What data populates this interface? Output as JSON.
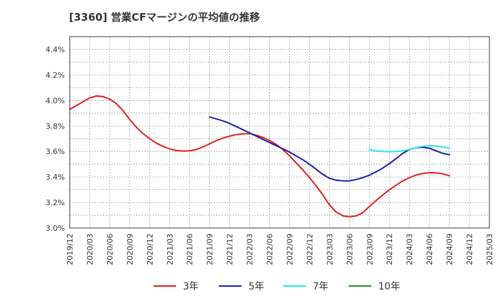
{
  "chart_data": {
    "type": "line",
    "title": "[3360]  営業CFマージンの平均値の推移",
    "xlabel": "",
    "ylabel": "",
    "x_ticks": [
      "2019/12",
      "2020/03",
      "2020/06",
      "2020/09",
      "2020/12",
      "2021/03",
      "2021/06",
      "2021/09",
      "2021/12",
      "2022/03",
      "2022/06",
      "2022/09",
      "2022/12",
      "2023/03",
      "2023/06",
      "2023/09",
      "2023/12",
      "2024/03",
      "2024/06",
      "2024/09",
      "2024/12",
      "2025/03"
    ],
    "y_ticks": [
      "3.0%",
      "3.2%",
      "3.4%",
      "3.6%",
      "3.8%",
      "4.0%",
      "4.2%",
      "4.4%"
    ],
    "ylim": [
      3.0,
      4.5
    ],
    "grid": true,
    "legend_position": "bottom",
    "series": [
      {
        "name": "3年",
        "color": "#e31a1c",
        "x": [
          "2019/12",
          "2020/01",
          "2020/02",
          "2020/03",
          "2020/04",
          "2020/05",
          "2020/06",
          "2020/07",
          "2020/08",
          "2020/09",
          "2020/10",
          "2020/11",
          "2020/12",
          "2021/01",
          "2021/02",
          "2021/03",
          "2021/04",
          "2021/05",
          "2021/06",
          "2021/07",
          "2021/08",
          "2021/09",
          "2021/10",
          "2021/11",
          "2021/12",
          "2022/01",
          "2022/02",
          "2022/03",
          "2022/04",
          "2022/05",
          "2022/06",
          "2022/07",
          "2022/08",
          "2022/09",
          "2022/10",
          "2022/11",
          "2022/12",
          "2023/01",
          "2023/02",
          "2023/03",
          "2023/04",
          "2023/05",
          "2023/06",
          "2023/07",
          "2023/08",
          "2023/09",
          "2023/10",
          "2023/11",
          "2023/12",
          "2024/01",
          "2024/02",
          "2024/03",
          "2024/04",
          "2024/05",
          "2024/06",
          "2024/07",
          "2024/08",
          "2024/09"
        ],
        "values": [
          3.93,
          3.96,
          3.99,
          4.02,
          4.035,
          4.03,
          4.01,
          3.975,
          3.92,
          3.85,
          3.79,
          3.74,
          3.7,
          3.665,
          3.64,
          3.62,
          3.607,
          3.603,
          3.605,
          3.615,
          3.635,
          3.66,
          3.685,
          3.705,
          3.72,
          3.732,
          3.738,
          3.74,
          3.728,
          3.71,
          3.685,
          3.655,
          3.615,
          3.565,
          3.51,
          3.455,
          3.395,
          3.33,
          3.26,
          3.18,
          3.125,
          3.095,
          3.088,
          3.095,
          3.12,
          3.17,
          3.215,
          3.26,
          3.3,
          3.335,
          3.37,
          3.395,
          3.415,
          3.428,
          3.433,
          3.432,
          3.425,
          3.41
        ]
      },
      {
        "name": "5年",
        "color": "#1a1aa8",
        "x": [
          "2021/09",
          "2021/10",
          "2021/11",
          "2021/12",
          "2022/01",
          "2022/02",
          "2022/03",
          "2022/04",
          "2022/05",
          "2022/06",
          "2022/07",
          "2022/08",
          "2022/09",
          "2022/10",
          "2022/11",
          "2022/12",
          "2023/01",
          "2023/02",
          "2023/03",
          "2023/04",
          "2023/05",
          "2023/06",
          "2023/07",
          "2023/08",
          "2023/09",
          "2023/10",
          "2023/11",
          "2023/12",
          "2024/01",
          "2024/02",
          "2024/03",
          "2024/04",
          "2024/05",
          "2024/06",
          "2024/07",
          "2024/08",
          "2024/09"
        ],
        "values": [
          3.87,
          3.855,
          3.84,
          3.82,
          3.795,
          3.77,
          3.745,
          3.72,
          3.695,
          3.67,
          3.645,
          3.62,
          3.595,
          3.565,
          3.535,
          3.5,
          3.46,
          3.42,
          3.39,
          3.375,
          3.37,
          3.37,
          3.38,
          3.395,
          3.415,
          3.44,
          3.47,
          3.505,
          3.545,
          3.585,
          3.615,
          3.63,
          3.633,
          3.625,
          3.605,
          3.585,
          3.575
        ]
      },
      {
        "name": "7年",
        "color": "#22e5f0",
        "x": [
          "2023/09",
          "2023/10",
          "2023/11",
          "2023/12",
          "2024/01",
          "2024/02",
          "2024/03",
          "2024/04",
          "2024/05",
          "2024/06",
          "2024/07",
          "2024/08",
          "2024/09"
        ],
        "values": [
          3.615,
          3.605,
          3.6,
          3.598,
          3.6,
          3.605,
          3.615,
          3.63,
          3.64,
          3.645,
          3.643,
          3.635,
          3.625
        ]
      },
      {
        "name": "10年",
        "color": "#228b22",
        "x": [],
        "values": []
      }
    ]
  }
}
